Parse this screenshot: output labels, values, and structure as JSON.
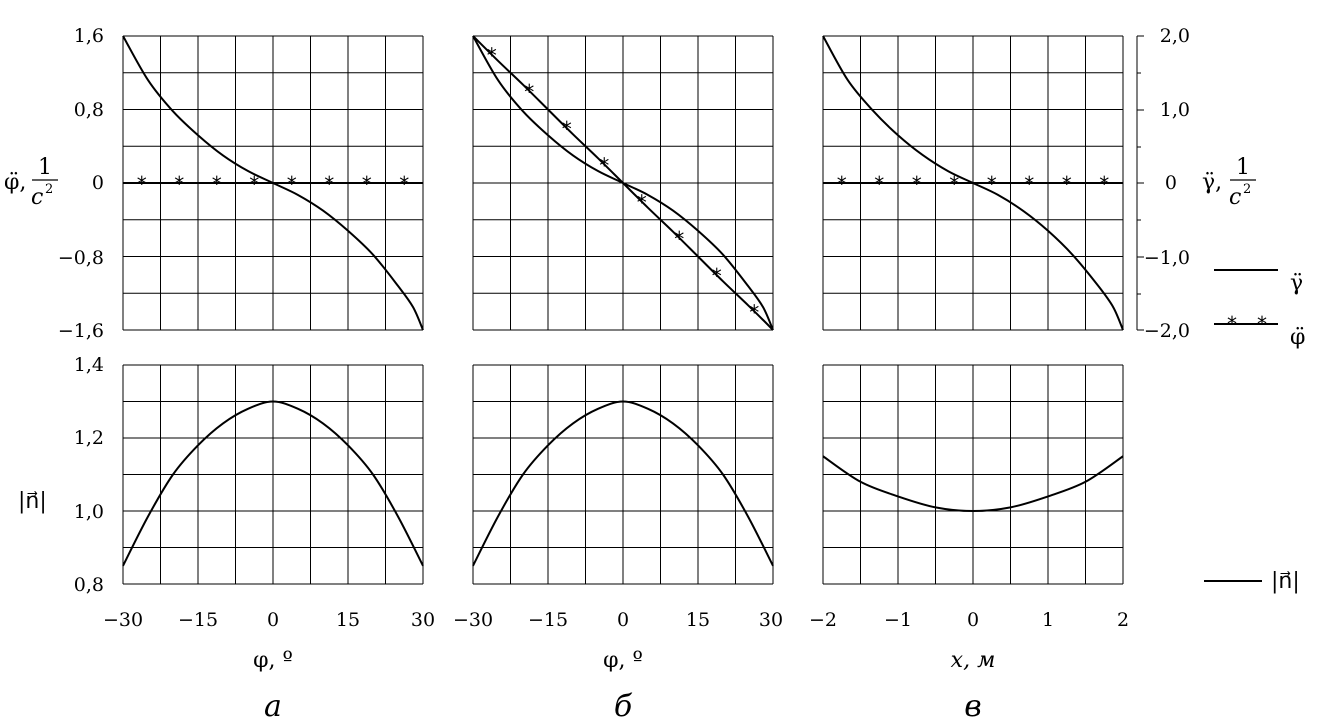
{
  "chart_data": [
    {
      "type": "line",
      "panel": "а",
      "row": "top",
      "x": [
        -30,
        -25,
        -20,
        -15,
        -10,
        -5,
        0,
        5,
        10,
        15,
        20,
        25,
        28,
        30
      ],
      "xlim": [
        -30,
        30
      ],
      "ylim": [
        -1.6,
        1.6
      ],
      "yticks": [
        "1,6",
        "0,8",
        "0",
        "−0,8",
        "−1,6"
      ],
      "ylabel": "φ̈, 1/c²",
      "series": [
        {
          "name": "γ̈",
          "style": "solid",
          "values": [
            1.6,
            1.12,
            0.78,
            0.52,
            0.3,
            0.13,
            0,
            -0.13,
            -0.3,
            -0.52,
            -0.78,
            -1.12,
            -1.35,
            -1.6
          ]
        },
        {
          "name": "φ̈",
          "style": "stars",
          "values": [
            0,
            0,
            0,
            0,
            0,
            0,
            0,
            0,
            0,
            0,
            0,
            0,
            0,
            0
          ]
        }
      ]
    },
    {
      "type": "line",
      "panel": "б",
      "row": "top",
      "x": [
        -30,
        -25,
        -20,
        -15,
        -10,
        -5,
        0,
        5,
        10,
        15,
        20,
        25,
        28,
        30
      ],
      "xlim": [
        -30,
        30
      ],
      "ylim": [
        -1.6,
        1.6
      ],
      "series": [
        {
          "name": "γ̈",
          "style": "solid",
          "values": [
            1.6,
            1.12,
            0.78,
            0.52,
            0.3,
            0.13,
            0,
            -0.13,
            -0.3,
            -0.52,
            -0.78,
            -1.12,
            -1.35,
            -1.6
          ]
        },
        {
          "name": "φ̈",
          "style": "stars",
          "values": [
            1.6,
            1.33,
            1.07,
            0.8,
            0.53,
            0.27,
            0,
            -0.27,
            -0.53,
            -0.8,
            -1.07,
            -1.33,
            -1.49,
            -1.6
          ]
        }
      ]
    },
    {
      "type": "line",
      "panel": "в",
      "row": "top",
      "x": [
        -2,
        -1.67,
        -1.33,
        -1,
        -0.67,
        -0.33,
        0,
        0.33,
        0.67,
        1,
        1.33,
        1.67,
        1.87,
        2
      ],
      "xlim": [
        -2,
        2
      ],
      "ylim": [
        -2.0,
        2.0
      ],
      "yticks": [
        "2,0",
        "1,0",
        "0",
        "−1,0",
        "−2,0"
      ],
      "ylabel": "γ̈, 1/c²",
      "series": [
        {
          "name": "γ̈",
          "style": "solid",
          "values": [
            2.0,
            1.4,
            0.98,
            0.65,
            0.38,
            0.16,
            0,
            -0.16,
            -0.38,
            -0.65,
            -0.98,
            -1.4,
            -1.69,
            -2.0
          ]
        },
        {
          "name": "φ̈",
          "style": "stars",
          "values": [
            0,
            0,
            0,
            0,
            0,
            0,
            0,
            0,
            0,
            0,
            0,
            0,
            0,
            0
          ]
        }
      ]
    },
    {
      "type": "line",
      "panel": "а",
      "row": "bottom",
      "x": [
        -30,
        -25,
        -20,
        -15,
        -10,
        -5,
        0,
        5,
        10,
        15,
        20,
        25,
        30
      ],
      "xlim": [
        -30,
        30
      ],
      "ylim": [
        0.8,
        1.4
      ],
      "yticks": [
        "1,4",
        "1,2",
        "1,0",
        "0,8"
      ],
      "ylabel": "|n⃗|",
      "xticks": [
        "−30",
        "−15",
        "0",
        "15",
        "30"
      ],
      "xlabel": "φ, º",
      "series": [
        {
          "name": "|n⃗|",
          "style": "solid",
          "values": [
            0.85,
            0.985,
            1.1,
            1.18,
            1.24,
            1.28,
            1.3,
            1.28,
            1.24,
            1.18,
            1.1,
            0.985,
            0.85
          ]
        }
      ]
    },
    {
      "type": "line",
      "panel": "б",
      "row": "bottom",
      "x": [
        -30,
        -25,
        -20,
        -15,
        -10,
        -5,
        0,
        5,
        10,
        15,
        20,
        25,
        30
      ],
      "xlim": [
        -30,
        30
      ],
      "ylim": [
        0.8,
        1.4
      ],
      "xticks": [
        "−30",
        "−15",
        "0",
        "15",
        "30"
      ],
      "xlabel": "φ, º",
      "series": [
        {
          "name": "|n⃗|",
          "style": "solid",
          "values": [
            0.85,
            0.985,
            1.1,
            1.18,
            1.24,
            1.28,
            1.3,
            1.28,
            1.24,
            1.18,
            1.1,
            0.985,
            0.85
          ]
        }
      ]
    },
    {
      "type": "line",
      "panel": "в",
      "row": "bottom",
      "x": [
        -2,
        -1.5,
        -1,
        -0.5,
        0,
        0.5,
        1,
        1.5,
        2
      ],
      "xlim": [
        -2,
        2
      ],
      "ylim": [
        0.8,
        1.4
      ],
      "xticks": [
        "−2",
        "−1",
        "0",
        "1",
        "2"
      ],
      "xlabel": "x, м",
      "series": [
        {
          "name": "|n⃗|",
          "style": "solid",
          "values": [
            1.15,
            1.08,
            1.04,
            1.01,
            1.0,
            1.01,
            1.04,
            1.08,
            1.15
          ]
        }
      ]
    }
  ],
  "labels": {
    "caption_a": "а",
    "caption_b": "б",
    "caption_v": "в",
    "legend_gamma": "γ̈",
    "legend_phi": "φ̈",
    "legend_n": "|n⃗|",
    "y_top_left_main": "φ̈,",
    "y_top_right_main": "γ̈,",
    "frac_num": "1",
    "frac_den": "c",
    "frac_exp": "2",
    "y_bottom_label": "|n⃗|",
    "xlabel_phi": "φ, º",
    "xlabel_x": "x, м"
  }
}
